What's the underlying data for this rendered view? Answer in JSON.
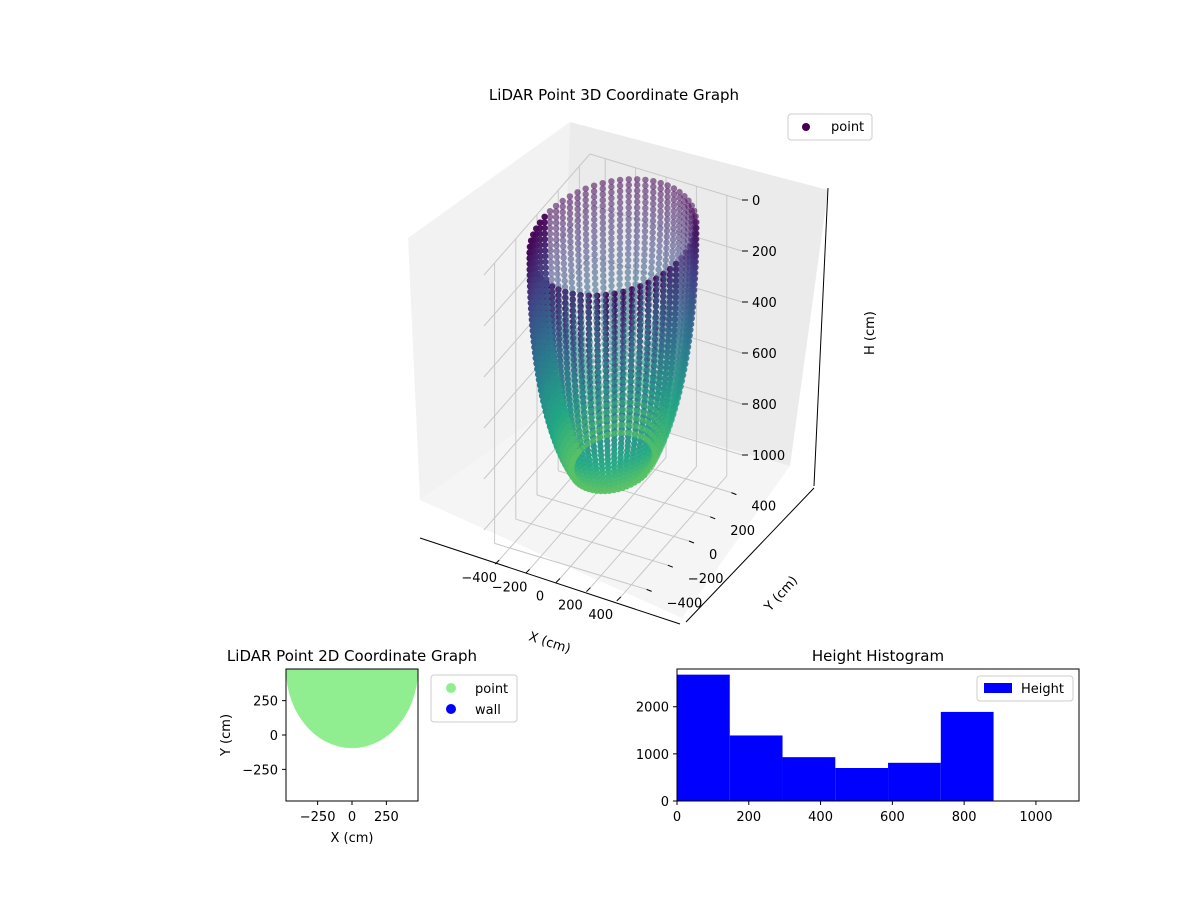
{
  "chart_data": [
    {
      "type": "scatter3d",
      "title": "LiDAR Point 3D Coordinate Graph",
      "xlabel": "X (cm)",
      "ylabel": "Y (cm)",
      "zlabel": "H (cm)",
      "xticks": [
        -400,
        -200,
        0,
        200,
        400
      ],
      "yticks": [
        -400,
        -200,
        0,
        200,
        400
      ],
      "zticks": [
        0,
        200,
        400,
        600,
        800,
        1000
      ],
      "xlim": [
        -500,
        500
      ],
      "ylim": [
        -500,
        500
      ],
      "zlim": [
        1100,
        0
      ],
      "z_inverted": true,
      "legend": {
        "entries": [
          "point"
        ],
        "loc": "upper right"
      },
      "series": [
        {
          "name": "point",
          "shape": "bowl",
          "radius_cm": 450,
          "height_range_cm": [
            0,
            880
          ]
        }
      ],
      "colormap": "viridis",
      "grid": true
    },
    {
      "type": "scatter",
      "title": "LiDAR Point 2D Coordinate Graph",
      "xlabel": "X (cm)",
      "ylabel": "Y (cm)",
      "xticks": [
        -250,
        0,
        250
      ],
      "yticks": [
        250,
        0,
        -250
      ],
      "xlim": [
        -480,
        480
      ],
      "ylim": [
        -480,
        480
      ],
      "legend": {
        "entries": [
          "point",
          "wall"
        ],
        "loc": "outside right"
      },
      "series": [
        {
          "name": "point",
          "color": "#90ee90",
          "region": "lower half-disc, Y from about -100 to top"
        },
        {
          "name": "wall",
          "color": "#0000ff"
        }
      ],
      "grid": false
    },
    {
      "type": "bar",
      "title": "Height Histogram",
      "xlabel": "",
      "ylabel": "",
      "xticks": [
        0,
        200,
        400,
        600,
        800,
        1000
      ],
      "yticks": [
        0,
        1000,
        2000
      ],
      "xlim": [
        0,
        1120
      ],
      "ylim": [
        0,
        2800
      ],
      "bin_edges": [
        0,
        147,
        294,
        441,
        588,
        735,
        882
      ],
      "values": [
        2680,
        1390,
        930,
        700,
        810,
        1890
      ],
      "color": "#0000ff",
      "legend": {
        "entries": [
          "Height"
        ],
        "loc": "upper right"
      },
      "grid": false
    }
  ]
}
